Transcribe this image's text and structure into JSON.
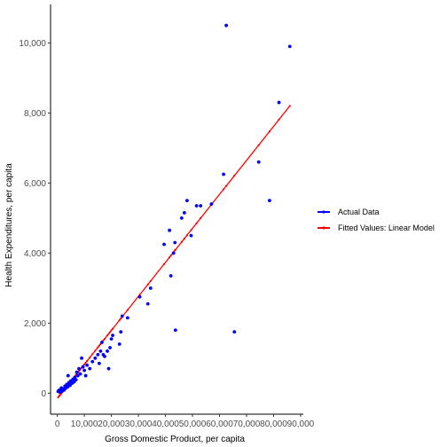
{
  "chart_data": {
    "type": "scatter",
    "xlabel": "Gross Domestic Product, per capita",
    "ylabel": "Health Expenditures, per capita",
    "xlim": [
      -2500,
      91000
    ],
    "ylim": [
      -600,
      11100
    ],
    "grid": false,
    "legend_position": "right",
    "x_ticks": [
      {
        "value": 0,
        "label": "0"
      },
      {
        "value": 10000,
        "label": "10,000"
      },
      {
        "value": 20000,
        "label": "20,000"
      },
      {
        "value": 30000,
        "label": "30,000"
      },
      {
        "value": 40000,
        "label": "40,000"
      },
      {
        "value": 50000,
        "label": "50,000"
      },
      {
        "value": 60000,
        "label": "60,000"
      },
      {
        "value": 70000,
        "label": "70,000"
      },
      {
        "value": 80000,
        "label": "80,000"
      },
      {
        "value": 90000,
        "label": "90,000"
      }
    ],
    "y_ticks": [
      {
        "value": 0,
        "label": "0"
      },
      {
        "value": 2000,
        "label": "2,000"
      },
      {
        "value": 4000,
        "label": "4,000"
      },
      {
        "value": 6000,
        "label": "6,000"
      },
      {
        "value": 8000,
        "label": "8,000"
      },
      {
        "value": 10000,
        "label": "10,000"
      }
    ],
    "series": [
      {
        "name": "Actual Data",
        "color": "#0000ff",
        "marker": "point",
        "points": [
          [
            300,
            50
          ],
          [
            600,
            80
          ],
          [
            900,
            30
          ],
          [
            1200,
            100
          ],
          [
            1500,
            150
          ],
          [
            1800,
            60
          ],
          [
            2100,
            120
          ],
          [
            2500,
            90
          ],
          [
            2800,
            200
          ],
          [
            3100,
            140
          ],
          [
            3500,
            250
          ],
          [
            3800,
            180
          ],
          [
            4000,
            500
          ],
          [
            4300,
            300
          ],
          [
            4700,
            220
          ],
          [
            5000,
            350
          ],
          [
            5400,
            280
          ],
          [
            5800,
            400
          ],
          [
            6200,
            320
          ],
          [
            6500,
            450
          ],
          [
            6900,
            380
          ],
          [
            7200,
            600
          ],
          [
            7600,
            500
          ],
          [
            8000,
            700
          ],
          [
            8500,
            550
          ],
          [
            9000,
            1000
          ],
          [
            9500,
            750
          ],
          [
            10000,
            650
          ],
          [
            10500,
            500
          ],
          [
            11000,
            800
          ],
          [
            12000,
            700
          ],
          [
            13000,
            900
          ],
          [
            14000,
            1000
          ],
          [
            15000,
            1100
          ],
          [
            15500,
            850
          ],
          [
            16000,
            1200
          ],
          [
            16500,
            1450
          ],
          [
            17000,
            1100
          ],
          [
            17500,
            1050
          ],
          [
            18500,
            1200
          ],
          [
            19000,
            700
          ],
          [
            19500,
            1300
          ],
          [
            20000,
            1550
          ],
          [
            20500,
            1650
          ],
          [
            23000,
            1400
          ],
          [
            23500,
            1750
          ],
          [
            24000,
            2200
          ],
          [
            26000,
            2150
          ],
          [
            30500,
            2750
          ],
          [
            33500,
            2550
          ],
          [
            34500,
            3000
          ],
          [
            39500,
            4250
          ],
          [
            41500,
            4650
          ],
          [
            42000,
            3350
          ],
          [
            43000,
            4000
          ],
          [
            43500,
            4300
          ],
          [
            43700,
            1800
          ],
          [
            46000,
            5000
          ],
          [
            47000,
            5150
          ],
          [
            48000,
            5500
          ],
          [
            49500,
            4500
          ],
          [
            51500,
            5350
          ],
          [
            53000,
            5350
          ],
          [
            57000,
            5400
          ],
          [
            61500,
            6250
          ],
          [
            62500,
            10500
          ],
          [
            65500,
            1750
          ],
          [
            74500,
            6600
          ],
          [
            78500,
            5500
          ],
          [
            82000,
            8300
          ],
          [
            86000,
            9900
          ]
        ]
      },
      {
        "name": "Fitted Values: Linear Model",
        "color": "#ff0000",
        "marker": "line",
        "points": [
          [
            300,
            -120
          ],
          [
            86000,
            8200
          ]
        ]
      }
    ]
  }
}
